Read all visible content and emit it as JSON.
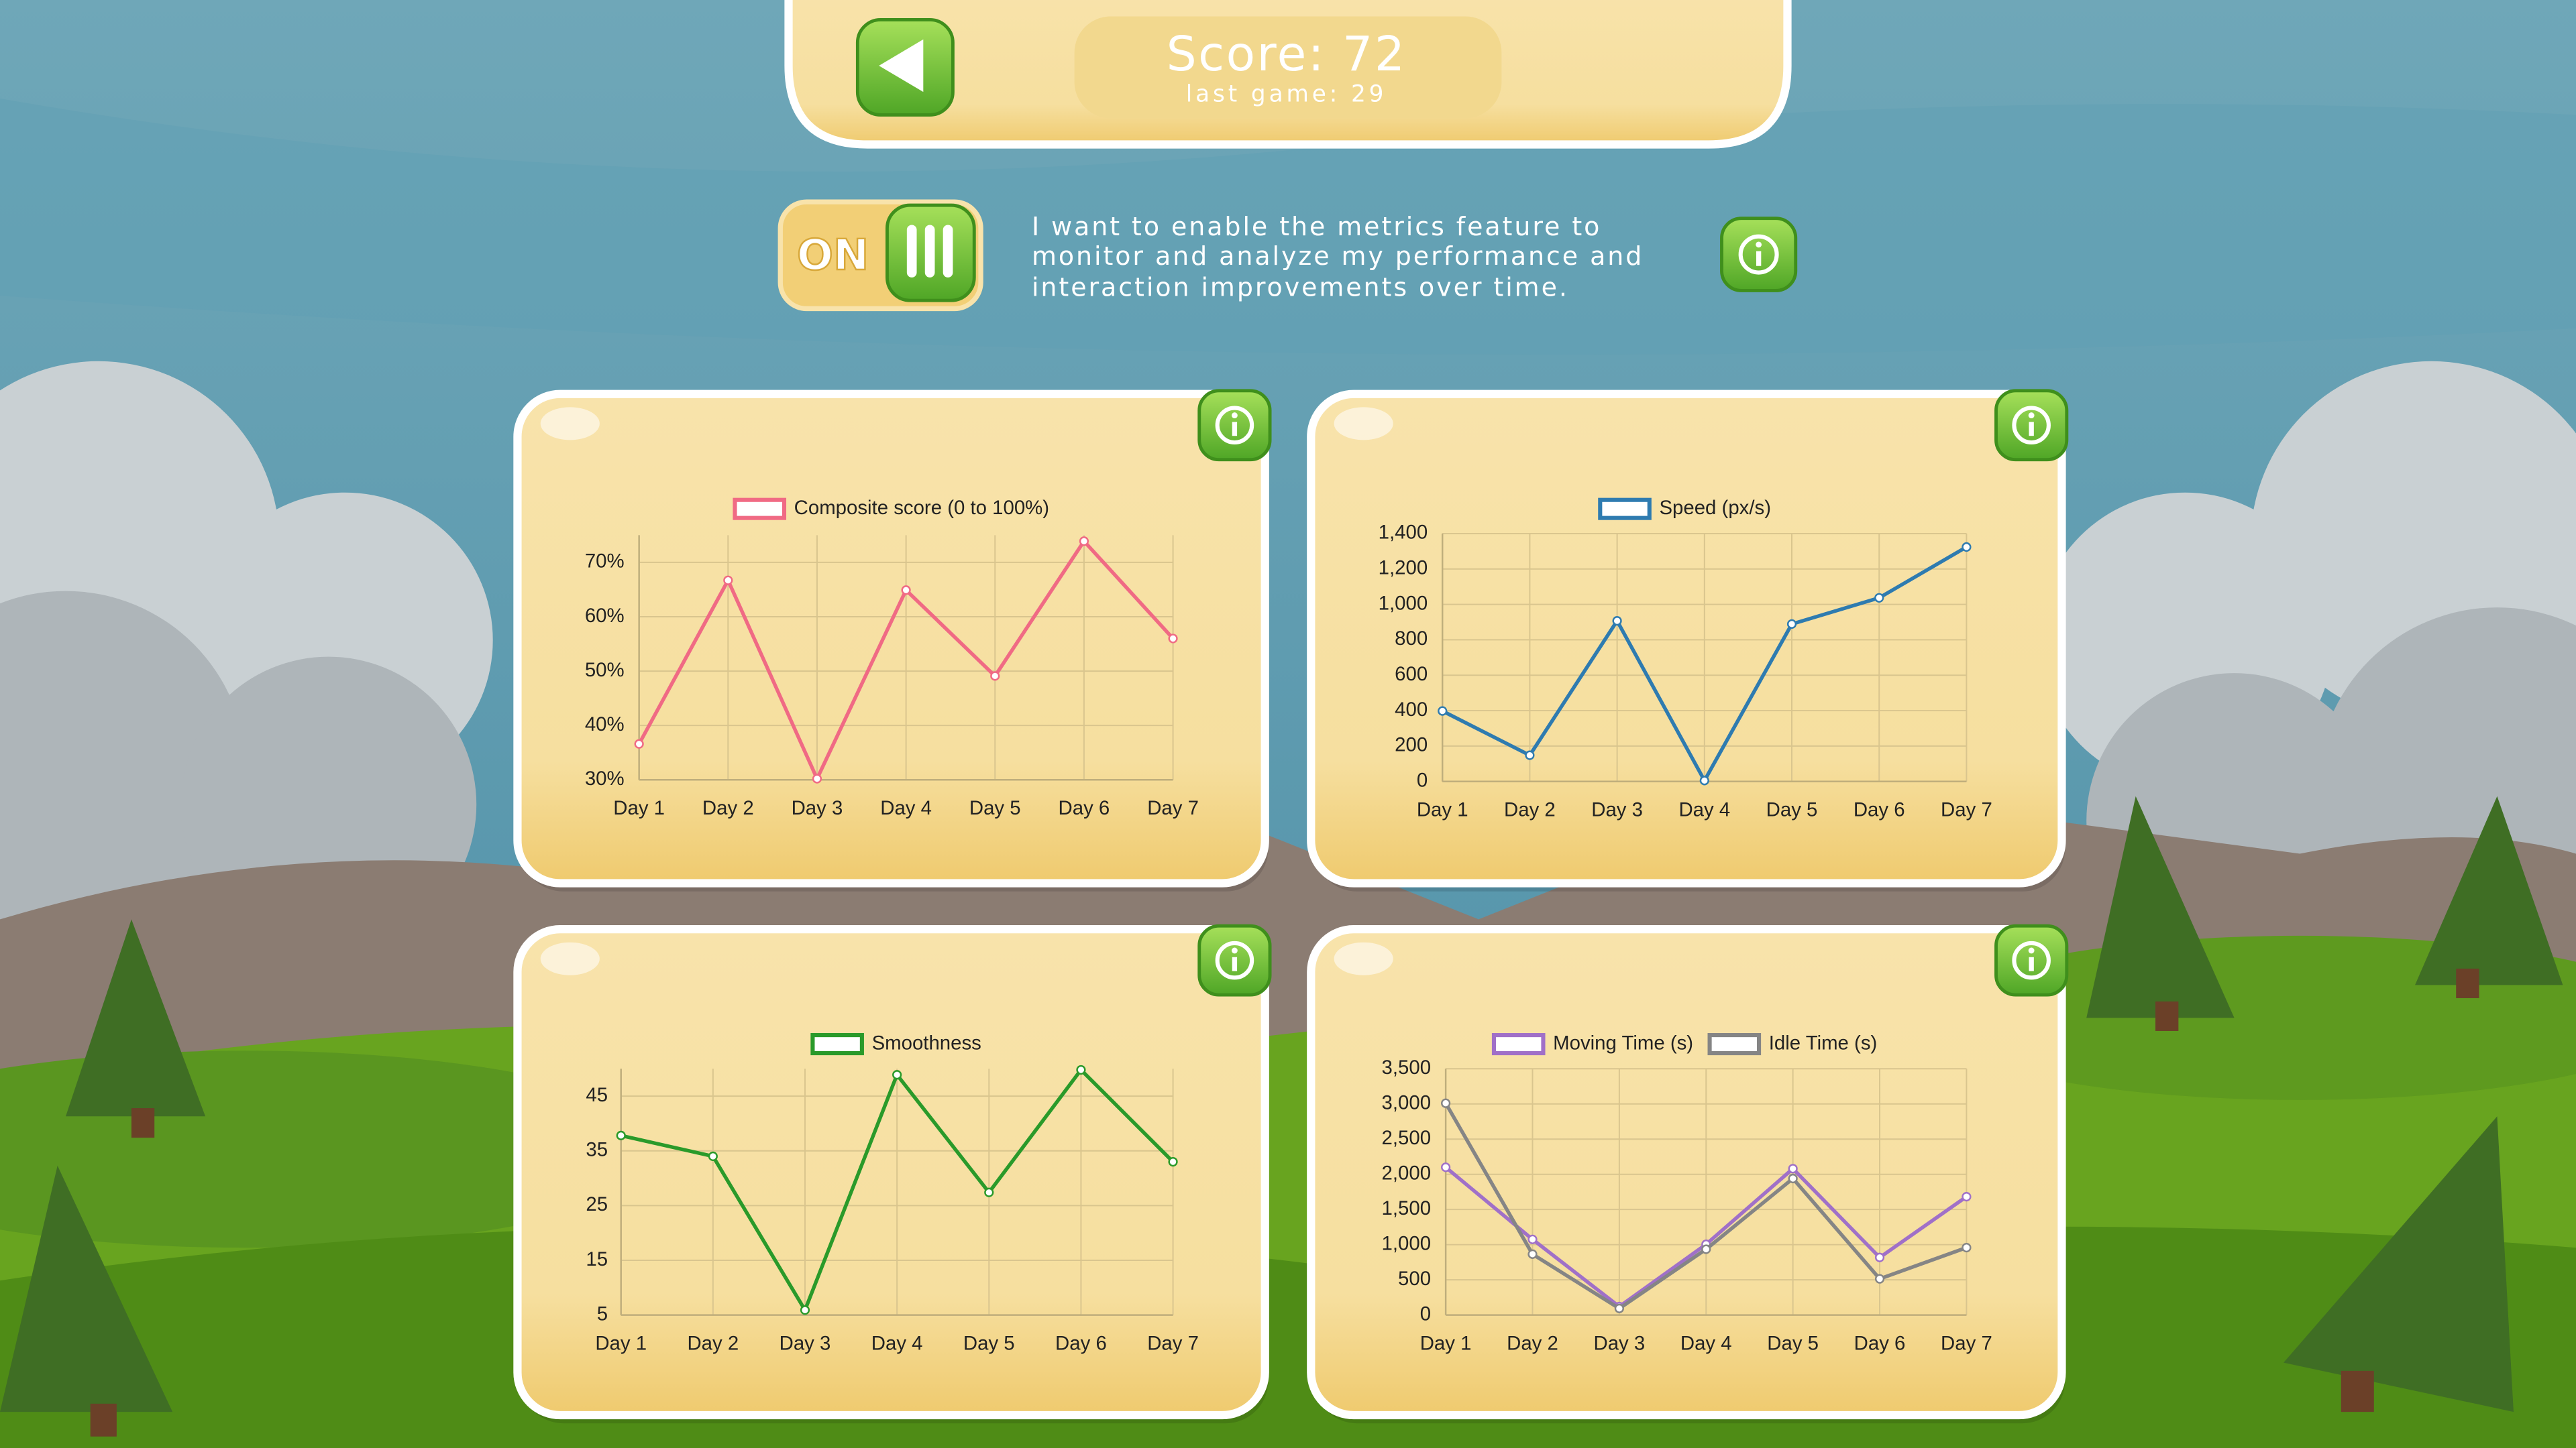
{
  "header": {
    "score": "Score: 72",
    "last_game": "last game: 29"
  },
  "toggle": {
    "label": "ON"
  },
  "description": [
    "I want to enable the metrics feature to",
    "monitor and analyze my performance and",
    "interaction improvements over time."
  ],
  "chart_data": [
    {
      "type": "line",
      "categories": [
        "Day 1",
        "Day 2",
        "Day 3",
        "Day 4",
        "Day 5",
        "Day 6",
        "Day 7"
      ],
      "series": [
        {
          "name": "Composite score (0 to 100%)",
          "color": "#f06a84",
          "values": [
            36.6,
            66.7,
            30.2,
            64.9,
            49.1,
            73.9,
            56
          ]
        }
      ],
      "ylim": [
        30,
        75
      ],
      "yticks": [
        {
          "value": 30,
          "label": "30%"
        },
        {
          "value": 40,
          "label": "40%"
        },
        {
          "value": 50,
          "label": "50%"
        },
        {
          "value": 60,
          "label": "60%"
        },
        {
          "value": 70,
          "label": "70%"
        }
      ],
      "grid": true
    },
    {
      "type": "line",
      "categories": [
        "Day 1",
        "Day 2",
        "Day 3",
        "Day 4",
        "Day 5",
        "Day 6",
        "Day 7"
      ],
      "series": [
        {
          "name": "Speed (px/s)",
          "color": "#2e7bb0",
          "values": [
            398,
            148,
            907,
            5,
            889,
            1037,
            1324
          ]
        }
      ],
      "ylim": [
        0,
        1400
      ],
      "yticks": [
        0,
        200,
        400,
        600,
        800,
        {
          "value": 1000,
          "label": "1,000"
        },
        {
          "value": 1200,
          "label": "1,200"
        },
        {
          "value": 1400,
          "label": "1,400"
        }
      ],
      "grid": true
    },
    {
      "type": "line",
      "categories": [
        "Day 1",
        "Day 2",
        "Day 3",
        "Day 4",
        "Day 5",
        "Day 6",
        "Day 7"
      ],
      "series": [
        {
          "name": "Smoothness",
          "color": "#2a9a2a",
          "values": [
            37.8,
            34,
            5.9,
            48.9,
            27.4,
            49.8,
            33
          ]
        }
      ],
      "ylim": [
        5,
        50
      ],
      "yticks": [
        5,
        15,
        25,
        35,
        45
      ],
      "grid": true
    },
    {
      "type": "line",
      "categories": [
        "Day 1",
        "Day 2",
        "Day 3",
        "Day 4",
        "Day 5",
        "Day 6",
        "Day 7"
      ],
      "series": [
        {
          "name": "Moving Time (s)",
          "color": "#a070c8",
          "values": [
            2100,
            1075,
            120,
            1005,
            2080,
            818,
            1682
          ]
        },
        {
          "name": "Idle Time (s)",
          "color": "#858585",
          "values": [
            3010,
            865,
            93,
            935,
            1940,
            514,
            958
          ]
        }
      ],
      "ylim": [
        0,
        3500
      ],
      "yticks": [
        0,
        500,
        {
          "value": 1000,
          "label": "1,000"
        },
        {
          "value": 1500,
          "label": "1,500"
        },
        {
          "value": 2000,
          "label": "2,000"
        },
        {
          "value": 2500,
          "label": "2,500"
        },
        {
          "value": 3000,
          "label": "3,000"
        },
        {
          "value": 3500,
          "label": "3,500"
        }
      ],
      "grid": true
    }
  ]
}
